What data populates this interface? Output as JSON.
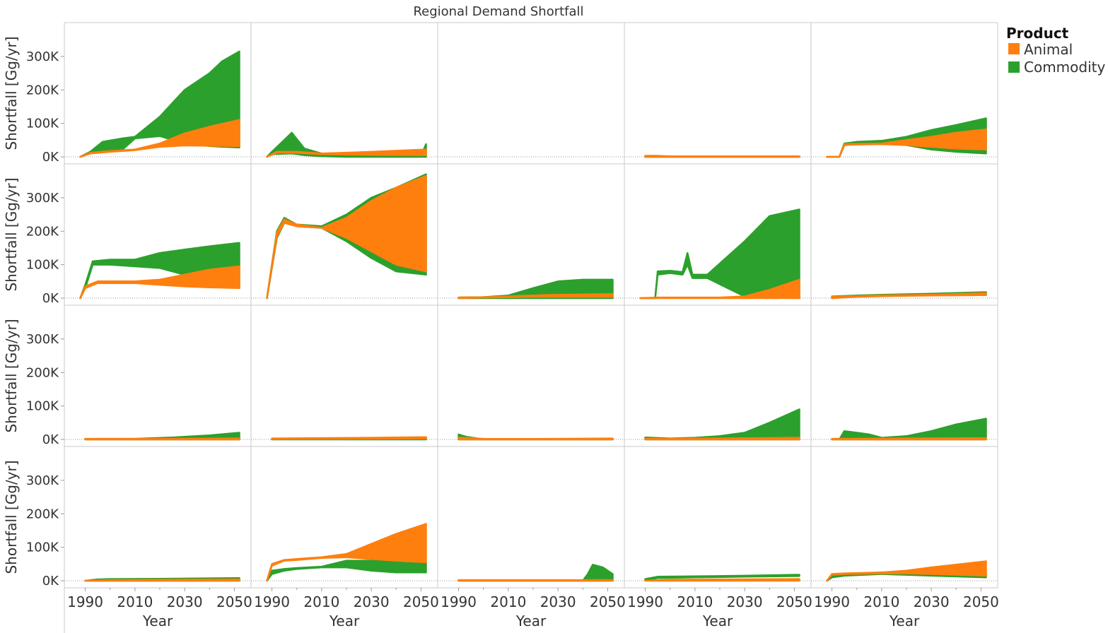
{
  "chart_data": {
    "type": "area",
    "title": "Regional Demand Shortfall",
    "xlabel": "Year",
    "ylabel": "Shortfall [Gg/yr]",
    "x_range": [
      1985,
      2055
    ],
    "y_range": [
      0,
      380000
    ],
    "x_ticks": [
      "1990",
      "2010",
      "2030",
      "2050"
    ],
    "x_tick_values": [
      1990,
      2010,
      2030,
      2050
    ],
    "y_ticks": [
      "0K",
      "100K",
      "200K",
      "300K"
    ],
    "y_tick_values": [
      0,
      100000,
      200000,
      300000
    ],
    "grid": "faceted",
    "rows": 4,
    "cols": 5,
    "legend": {
      "title": "Product",
      "placement": "top-right",
      "entries": [
        {
          "name": "Animal",
          "color": "#ff7f0e"
        },
        {
          "name": "Commodity",
          "color": "#2ca02c"
        }
      ]
    },
    "series_colors": {
      "Animal": "#ff7f0e",
      "Commodity": "#2ca02c"
    },
    "panels": [
      {
        "Commodity": {
          "x": [
            1988,
            1992,
            1997,
            2005,
            2010,
            2020,
            2030,
            2040,
            2045,
            2052
          ],
          "upper": [
            0,
            15000,
            45000,
            55000,
            60000,
            120000,
            200000,
            250000,
            285000,
            315000
          ],
          "lower": [
            0,
            12000,
            18000,
            22000,
            55000,
            62000,
            40000,
            32000,
            30000,
            28000
          ]
        },
        "Animal": {
          "x": [
            1988,
            1992,
            2000,
            2010,
            2020,
            2030,
            2040,
            2052
          ],
          "upper": [
            0,
            12000,
            17000,
            22000,
            40000,
            70000,
            90000,
            110000
          ],
          "lower": [
            0,
            10000,
            15000,
            20000,
            30000,
            34000,
            33000,
            32000
          ]
        }
      },
      {
        "Commodity": {
          "x": [
            1988,
            1990,
            1998,
            2003,
            2010,
            2020,
            2035,
            2050,
            2052
          ],
          "upper": [
            0,
            15000,
            72000,
            25000,
            10000,
            5000,
            2000,
            2000,
            38000
          ],
          "lower": [
            0,
            8000,
            10000,
            5000,
            2000,
            0,
            0,
            0,
            0
          ]
        },
        "Animal": {
          "x": [
            1988,
            1992,
            2000,
            2010,
            2030,
            2052
          ],
          "upper": [
            0,
            15000,
            15000,
            10000,
            15000,
            22000
          ],
          "lower": [
            0,
            12000,
            12000,
            8000,
            6000,
            5000
          ]
        }
      },
      {},
      {
        "Commodity": {
          "x": [
            1990,
            1995,
            2000,
            2052
          ],
          "upper": [
            3000,
            3000,
            0,
            0
          ],
          "lower": [
            0,
            0,
            0,
            0
          ]
        },
        "Animal": {
          "x": [
            1990,
            1995,
            2000,
            2052
          ],
          "upper": [
            3000,
            3000,
            1500,
            1500
          ],
          "lower": [
            0,
            0,
            0,
            0
          ]
        }
      },
      {
        "Commodity": {
          "x": [
            1988,
            1993,
            1995,
            2000,
            2010,
            2020,
            2030,
            2040,
            2052
          ],
          "upper": [
            0,
            0,
            40000,
            45000,
            48000,
            60000,
            80000,
            95000,
            115000
          ],
          "lower": [
            0,
            0,
            35000,
            38000,
            40000,
            35000,
            22000,
            15000,
            10000
          ]
        },
        "Animal": {
          "x": [
            1988,
            1993,
            1995,
            2010,
            2020,
            2030,
            2040,
            2052
          ],
          "upper": [
            0,
            0,
            38000,
            40000,
            50000,
            60000,
            72000,
            82000
          ],
          "lower": [
            0,
            0,
            36000,
            38000,
            35000,
            30000,
            25000,
            22000
          ]
        }
      },
      {
        "Commodity": {
          "x": [
            1988,
            1990,
            1993,
            2000,
            2010,
            2020,
            2030,
            2040,
            2052
          ],
          "upper": [
            0,
            40000,
            110000,
            115000,
            115000,
            135000,
            145000,
            155000,
            165000
          ],
          "lower": [
            0,
            30000,
            100000,
            100000,
            95000,
            90000,
            70000,
            40000,
            30000
          ]
        },
        "Animal": {
          "x": [
            1988,
            1990,
            1995,
            2010,
            2020,
            2030,
            2040,
            2052
          ],
          "upper": [
            0,
            35000,
            50000,
            50000,
            55000,
            70000,
            85000,
            95000
          ],
          "lower": [
            0,
            30000,
            45000,
            45000,
            40000,
            35000,
            32000,
            30000
          ]
        }
      },
      {
        "Commodity": {
          "x": [
            1988,
            1992,
            1995,
            2000,
            2010,
            2020,
            2030,
            2040,
            2052
          ],
          "upper": [
            0,
            200000,
            240000,
            220000,
            215000,
            250000,
            300000,
            330000,
            370000
          ],
          "lower": [
            0,
            180000,
            225000,
            215000,
            210000,
            170000,
            120000,
            80000,
            70000
          ]
        },
        "Animal": {
          "x": [
            1988,
            1992,
            1995,
            2000,
            2010,
            2020,
            2030,
            2040,
            2052
          ],
          "upper": [
            0,
            195000,
            235000,
            220000,
            210000,
            240000,
            290000,
            330000,
            365000
          ],
          "lower": [
            0,
            185000,
            225000,
            215000,
            210000,
            180000,
            140000,
            100000,
            80000
          ]
        }
      },
      {
        "Commodity": {
          "x": [
            1990,
            2000,
            2010,
            2020,
            2030,
            2040,
            2052
          ],
          "upper": [
            2000,
            3000,
            8000,
            30000,
            50000,
            55000,
            55000
          ],
          "lower": [
            0,
            0,
            0,
            0,
            0,
            0,
            0
          ]
        },
        "Animal": {
          "x": [
            1990,
            2000,
            2010,
            2020,
            2030,
            2052
          ],
          "upper": [
            2000,
            3000,
            5000,
            8000,
            10000,
            12000
          ],
          "lower": [
            0,
            2000,
            3000,
            4000,
            4000,
            4000
          ]
        }
      },
      {
        "Commodity": {
          "x": [
            1988,
            1994,
            1995,
            2000,
            2005,
            2007,
            2009,
            2015,
            2030,
            2040,
            2052
          ],
          "upper": [
            0,
            0,
            80000,
            82000,
            78000,
            135000,
            70000,
            70000,
            170000,
            245000,
            265000
          ],
          "lower": [
            0,
            0,
            70000,
            75000,
            70000,
            100000,
            60000,
            60000,
            5000,
            2000,
            0
          ]
        },
        "Animal": {
          "x": [
            1988,
            1995,
            2020,
            2030,
            2040,
            2052
          ],
          "upper": [
            0,
            2000,
            2000,
            5000,
            25000,
            55000
          ],
          "lower": [
            0,
            0,
            0,
            0,
            0,
            0
          ]
        }
      },
      {
        "Commodity": {
          "x": [
            1990,
            2000,
            2010,
            2030,
            2052
          ],
          "upper": [
            5000,
            8000,
            10000,
            13000,
            18000
          ],
          "lower": [
            0,
            5000,
            7000,
            9000,
            10000
          ]
        },
        "Animal": {
          "x": [
            1990,
            2000,
            2010,
            2030,
            2052
          ],
          "upper": [
            4000,
            6000,
            8000,
            10000,
            15000
          ],
          "lower": [
            0,
            4000,
            6000,
            8000,
            9000
          ]
        }
      },
      {
        "Commodity": {
          "x": [
            1990,
            2010,
            2025,
            2040,
            2052
          ],
          "upper": [
            2000,
            2000,
            6000,
            12000,
            20000
          ],
          "lower": [
            0,
            0,
            0,
            0,
            0
          ]
        },
        "Animal": {
          "x": [
            1990,
            2020,
            2052
          ],
          "upper": [
            1500,
            2000,
            3000
          ],
          "lower": [
            0,
            0,
            0
          ]
        }
      },
      {
        "Commodity": {
          "x": [
            1990,
            2020,
            2052
          ],
          "upper": [
            2000,
            3000,
            5000
          ],
          "lower": [
            0,
            0,
            0
          ]
        },
        "Animal": {
          "x": [
            1990,
            2010,
            2030,
            2052
          ],
          "upper": [
            3000,
            4000,
            5000,
            7000
          ],
          "lower": [
            1000,
            1500,
            2000,
            2500
          ]
        }
      },
      {
        "Commodity": {
          "x": [
            1990,
            1993,
            1995,
            2000,
            2052
          ],
          "upper": [
            15000,
            8000,
            6000,
            0,
            0
          ],
          "lower": [
            0,
            0,
            0,
            0,
            0
          ]
        },
        "Animal": {
          "x": [
            1990,
            1995,
            2000,
            2020,
            2052
          ],
          "upper": [
            5000,
            4000,
            2000,
            1500,
            3000
          ],
          "lower": [
            0,
            0,
            0,
            0,
            0
          ]
        }
      },
      {
        "Commodity": {
          "x": [
            1990,
            2000,
            2010,
            2020,
            2030,
            2040,
            2052
          ],
          "upper": [
            6000,
            3000,
            5000,
            10000,
            20000,
            50000,
            90000
          ],
          "lower": [
            0,
            0,
            0,
            0,
            0,
            0,
            0
          ]
        },
        "Animal": {
          "x": [
            1990,
            2020,
            2052
          ],
          "upper": [
            2000,
            3000,
            5000
          ],
          "lower": [
            0,
            0,
            0
          ]
        }
      },
      {
        "Commodity": {
          "x": [
            1990,
            1993,
            1995,
            2000,
            2005,
            2010,
            2020,
            2030,
            2040,
            2052
          ],
          "upper": [
            0,
            0,
            25000,
            20000,
            15000,
            5000,
            10000,
            25000,
            45000,
            62000
          ],
          "lower": [
            0,
            0,
            0,
            0,
            0,
            0,
            0,
            0,
            0,
            0
          ]
        },
        "Animal": {
          "x": [
            1990,
            2020,
            2052
          ],
          "upper": [
            2000,
            3000,
            4000
          ],
          "lower": [
            0,
            0,
            0
          ]
        }
      },
      {
        "Commodity": {
          "x": [
            1990,
            1995,
            2000,
            2020,
            2052
          ],
          "upper": [
            0,
            4000,
            5000,
            6000,
            8000
          ],
          "lower": [
            0,
            0,
            0,
            0,
            0
          ]
        },
        "Animal": {
          "x": [
            1990,
            2000,
            2020,
            2052
          ],
          "upper": [
            0,
            2000,
            3000,
            4000
          ],
          "lower": [
            0,
            0,
            0,
            0
          ]
        }
      },
      {
        "Commodity": {
          "x": [
            1988,
            1990,
            1995,
            2000,
            2010,
            2020,
            2030,
            2040,
            2052
          ],
          "upper": [
            0,
            30000,
            35000,
            38000,
            42000,
            60000,
            60000,
            58000,
            55000
          ],
          "lower": [
            0,
            20000,
            30000,
            35000,
            40000,
            40000,
            30000,
            25000,
            25000
          ]
        },
        "Animal": {
          "x": [
            1988,
            1990,
            1995,
            2000,
            2010,
            2020,
            2030,
            2040,
            2052
          ],
          "upper": [
            0,
            50000,
            62000,
            65000,
            70000,
            80000,
            110000,
            140000,
            170000
          ],
          "lower": [
            0,
            45000,
            60000,
            62000,
            68000,
            70000,
            65000,
            60000,
            55000
          ]
        }
      },
      {
        "Commodity": {
          "x": [
            1990,
            2040,
            2042,
            2044,
            2048,
            2052
          ],
          "upper": [
            0,
            0,
            20000,
            48000,
            40000,
            20000
          ],
          "lower": [
            0,
            0,
            0,
            0,
            0,
            0
          ]
        },
        "Animal": {
          "x": [
            1990,
            2052
          ],
          "upper": [
            2000,
            2000
          ],
          "lower": [
            0,
            0
          ]
        }
      },
      {
        "Commodity": {
          "x": [
            1990,
            1995,
            2010,
            2030,
            2052
          ],
          "upper": [
            5000,
            12000,
            13000,
            15000,
            18000
          ],
          "lower": [
            0,
            8000,
            10000,
            12000,
            14000
          ]
        },
        "Animal": {
          "x": [
            1990,
            2000,
            2052
          ],
          "upper": [
            0,
            3000,
            5000
          ],
          "lower": [
            0,
            0,
            0
          ]
        }
      },
      {
        "Commodity": {
          "x": [
            1988,
            1990,
            1995,
            2010,
            2030,
            2052
          ],
          "upper": [
            0,
            15000,
            20000,
            25000,
            25000,
            25000
          ],
          "lower": [
            0,
            10000,
            15000,
            20000,
            15000,
            10000
          ]
        },
        "Animal": {
          "x": [
            1988,
            1990,
            1995,
            2010,
            2020,
            2030,
            2040,
            2052
          ],
          "upper": [
            0,
            20000,
            22000,
            25000,
            30000,
            40000,
            48000,
            58000
          ],
          "lower": [
            0,
            18000,
            20000,
            22000,
            22000,
            20000,
            18000,
            15000
          ]
        }
      }
    ]
  }
}
